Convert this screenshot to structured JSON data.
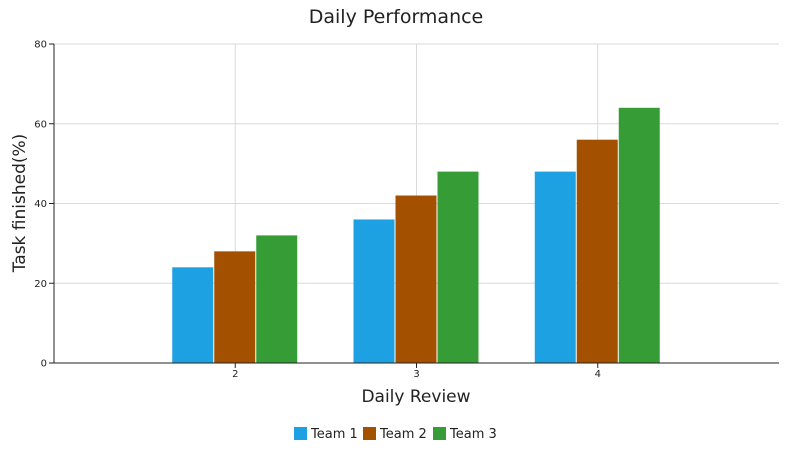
{
  "chart_data": {
    "type": "bar",
    "title": "Daily Performance",
    "xlabel": "Daily Review",
    "ylabel": "Task finished(%)",
    "categories": [
      "2",
      "3",
      "4"
    ],
    "series": [
      {
        "name": "Team 1",
        "color": "#1ea1e3",
        "values": [
          24,
          36,
          48
        ]
      },
      {
        "name": "Team 2",
        "color": "#a35000",
        "values": [
          28,
          42,
          56
        ]
      },
      {
        "name": "Team 3",
        "color": "#369c36",
        "values": [
          32,
          48,
          64
        ]
      }
    ],
    "ylim": [
      0,
      80
    ],
    "yticks": [
      0,
      20,
      40,
      60,
      80
    ],
    "x_range": [
      1,
      5
    ],
    "grid": true,
    "legend_position": "bottom"
  }
}
